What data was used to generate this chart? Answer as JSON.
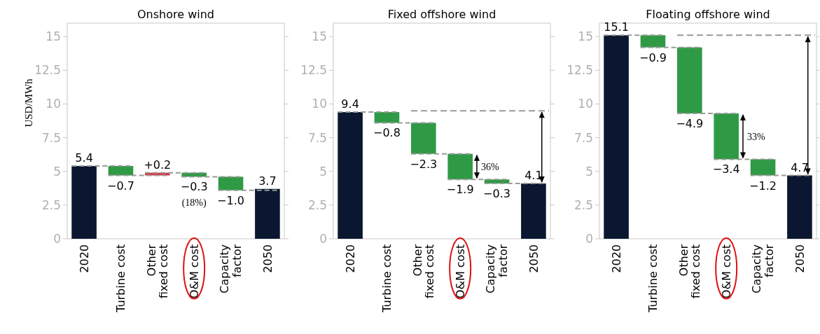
{
  "chart_data": [
    {
      "type": "bar",
      "title": "Onshore wind",
      "ylabel": "USD/MWh",
      "categories": [
        "2020",
        "Turbine cost",
        "Other fixed cost",
        "O&M cost",
        "Capacity factor",
        "2050"
      ],
      "values": [
        5.4,
        -0.7,
        0.2,
        -0.3,
        -1.0,
        3.7
      ],
      "base": [
        0,
        5.4,
        4.7,
        4.9,
        4.6,
        0
      ],
      "colors": [
        "#0b1730",
        "#2f9a45",
        "#d6373f",
        "#2f9a45",
        "#2f9a45",
        "#0b1730"
      ],
      "value_labels": [
        "5.4",
        "−0.7",
        "+0.2",
        "−0.3",
        "−1.0",
        "3.7"
      ],
      "ylim": [
        0,
        16
      ],
      "yticks": [
        0,
        2.5,
        5,
        7.5,
        10,
        12.5,
        15
      ],
      "annotations": [
        "(18%)"
      ]
    },
    {
      "type": "bar",
      "title": "Fixed offshore wind",
      "categories": [
        "2020",
        "Turbine cost",
        "Other fixed cost",
        "O&M cost",
        "Capacity factor",
        "2050"
      ],
      "values": [
        9.4,
        -0.8,
        -2.3,
        -1.9,
        -0.3,
        4.1
      ],
      "base": [
        0,
        9.4,
        8.6,
        6.3,
        4.4,
        0
      ],
      "colors": [
        "#0b1730",
        "#2f9a45",
        "#2f9a45",
        "#2f9a45",
        "#2f9a45",
        "#0b1730"
      ],
      "value_labels": [
        "9.4",
        "−0.8",
        "−2.3",
        "−1.9",
        "−0.3",
        "4.1"
      ],
      "ylim": [
        0,
        16
      ],
      "yticks": [
        0,
        2.5,
        5,
        7.5,
        10,
        12.5,
        15
      ],
      "ref_lines": [
        {
          "axis": "y",
          "value": 9.5,
          "color": "#999999",
          "line_style": "dashed"
        }
      ],
      "annotations": [
        {
          "text": "36%",
          "x": "O&M cost",
          "y": 4.4
        }
      ]
    },
    {
      "type": "bar",
      "title": "Floating offshore wind",
      "categories": [
        "2020",
        "Turbine cost",
        "Other fixed cost",
        "O&M cost",
        "Capacity factor",
        "2050"
      ],
      "values": [
        15.1,
        -0.9,
        -4.9,
        -3.4,
        -1.2,
        4.7
      ],
      "base": [
        0,
        15.1,
        14.2,
        9.3,
        5.9,
        0
      ],
      "colors": [
        "#0b1730",
        "#2f9a45",
        "#2f9a45",
        "#2f9a45",
        "#2f9a45",
        "#0b1730"
      ],
      "value_labels": [
        "15.1",
        "−0.9",
        "−4.9",
        "−3.4",
        "−1.2",
        "4.7"
      ],
      "ylim": [
        0,
        16
      ],
      "yticks": [
        0,
        2.5,
        5,
        7.5,
        10,
        12.5,
        15
      ],
      "ref_lines": [
        {
          "axis": "y",
          "value": 15.1,
          "color": "#999999",
          "line_style": "dashed"
        }
      ],
      "annotations": [
        {
          "text": "33%",
          "x": "O&M cost",
          "y": 5.9
        }
      ]
    }
  ]
}
